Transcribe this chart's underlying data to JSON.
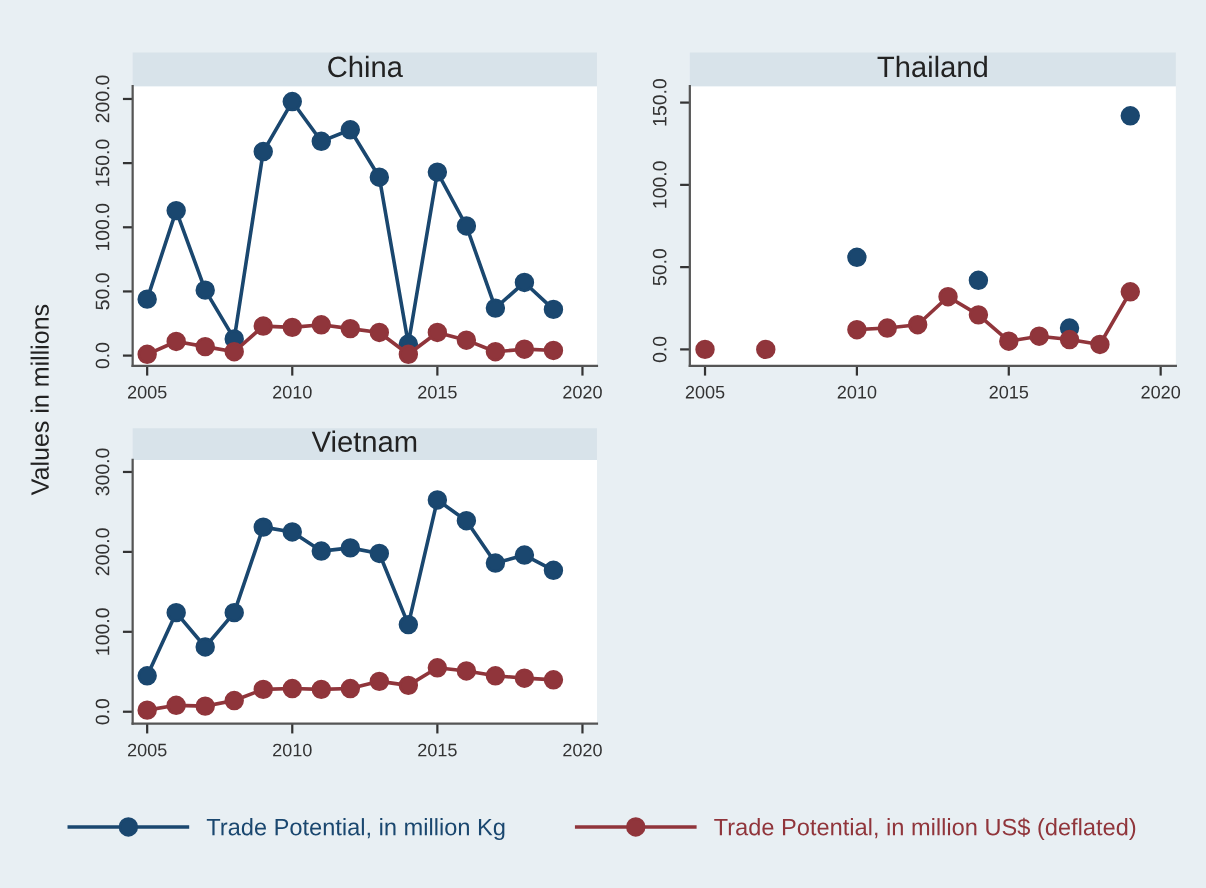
{
  "chart_data": [
    {
      "type": "line",
      "title": "China",
      "ylabel": "Values in millions",
      "legend": "bottom",
      "marker": "circle",
      "grid": false,
      "x": [
        2005,
        2006,
        2007,
        2008,
        2009,
        2010,
        2011,
        2012,
        2013,
        2014,
        2015,
        2016,
        2017,
        2018,
        2019
      ],
      "xlim": [
        2004.5,
        2020.5
      ],
      "xticks": [
        2005,
        2010,
        2015,
        2020
      ],
      "ylim": [
        -8,
        210
      ],
      "yticks": [
        {
          "value": 0,
          "label": "0.0"
        },
        {
          "value": 50,
          "label": "50.0"
        },
        {
          "value": 100,
          "label": "100.0"
        },
        {
          "value": 150,
          "label": "150.0"
        },
        {
          "value": 200,
          "label": "200.0"
        }
      ],
      "series": [
        {
          "name": "Trade Potential, in million Kg",
          "color": "#1a476f",
          "values": [
            44,
            113,
            51,
            13,
            159,
            198,
            167,
            176,
            139,
            9,
            143,
            101,
            37,
            57,
            36
          ]
        },
        {
          "name": "Trade Potential, in million US$ (deflated)",
          "color": "#90353b",
          "values": [
            1,
            11,
            7,
            3,
            23,
            22,
            24,
            21,
            18,
            1,
            18,
            12,
            3,
            5,
            4
          ]
        }
      ]
    },
    {
      "type": "line",
      "title": "Thailand",
      "marker": "circle",
      "grid": false,
      "x": [
        2005,
        2006,
        2007,
        2008,
        2009,
        2010,
        2011,
        2012,
        2013,
        2014,
        2015,
        2016,
        2017,
        2018,
        2019
      ],
      "xlim": [
        2004.5,
        2020.5
      ],
      "xticks": [
        2005,
        2010,
        2015,
        2020
      ],
      "ylim": [
        -10,
        160
      ],
      "yticks": [
        {
          "value": 0,
          "label": "0.0"
        },
        {
          "value": 50,
          "label": "50.0"
        },
        {
          "value": 100,
          "label": "100.0"
        },
        {
          "value": 150,
          "label": "150.0"
        }
      ],
      "series": [
        {
          "type": "scatter",
          "color": "#1a476f",
          "values": [
            null,
            null,
            null,
            null,
            null,
            56,
            null,
            null,
            null,
            42,
            null,
            null,
            13,
            null,
            142
          ]
        },
        {
          "color": "#90353b",
          "values": [
            0,
            null,
            0,
            null,
            null,
            12,
            13,
            15,
            32,
            21,
            5,
            8,
            6,
            3,
            35
          ]
        }
      ]
    },
    {
      "type": "line",
      "title": "Vietnam",
      "marker": "circle",
      "grid": false,
      "x": [
        2005,
        2006,
        2007,
        2008,
        2009,
        2010,
        2011,
        2012,
        2013,
        2014,
        2015,
        2016,
        2017,
        2018,
        2019
      ],
      "xlim": [
        2004.5,
        2020.5
      ],
      "xticks": [
        2005,
        2010,
        2015,
        2020
      ],
      "ylim": [
        -15,
        315
      ],
      "yticks": [
        {
          "value": 0,
          "label": "0.0"
        },
        {
          "value": 100,
          "label": "100.0"
        },
        {
          "value": 200,
          "label": "200.0"
        },
        {
          "value": 300,
          "label": "300.0"
        }
      ],
      "series": [
        {
          "color": "#1a476f",
          "values": [
            45,
            124,
            81,
            124,
            231,
            225,
            201,
            205,
            198,
            109,
            265,
            239,
            186,
            196,
            177
          ]
        },
        {
          "color": "#90353b",
          "values": [
            2,
            8,
            7,
            14,
            28,
            29,
            28,
            29,
            38,
            33,
            55,
            51,
            45,
            42,
            40
          ]
        }
      ]
    }
  ]
}
